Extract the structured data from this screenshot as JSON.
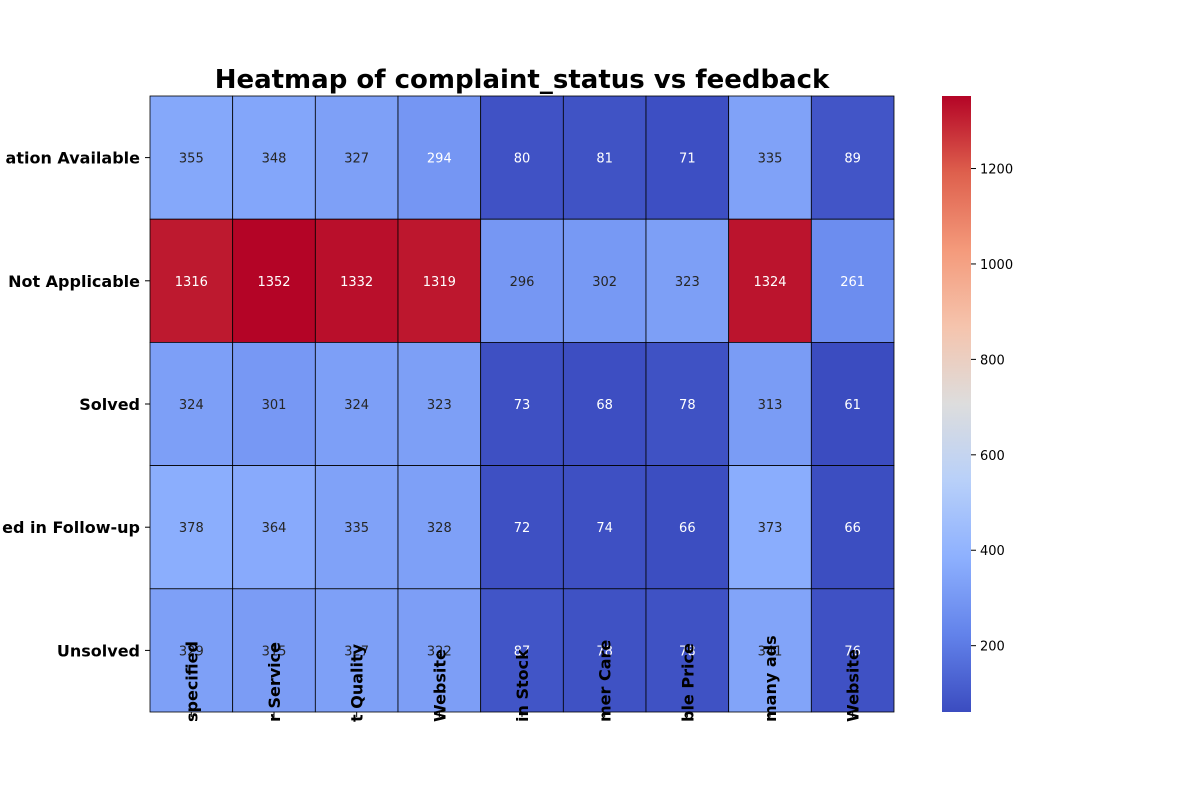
{
  "chart_data": {
    "type": "heatmap",
    "title": "Heatmap of complaint_status vs feedback",
    "xlabel": "",
    "ylabel": "",
    "rows": [
      "ation Available",
      "Not Applicable",
      "Solved",
      "ed in Follow-up",
      "Unsolved"
    ],
    "columns": [
      "specified",
      "r Service",
      "t Quality",
      "Website",
      "in Stock",
      "mer Care",
      "ble Price",
      "many ads",
      "Website"
    ],
    "values": [
      [
        355,
        348,
        327,
        294,
        80,
        81,
        71,
        335,
        89
      ],
      [
        1316,
        1352,
        1332,
        1319,
        296,
        302,
        323,
        1324,
        261
      ],
      [
        324,
        301,
        324,
        323,
        73,
        68,
        78,
        313,
        61
      ],
      [
        378,
        364,
        335,
        328,
        72,
        74,
        66,
        373,
        66
      ],
      [
        329,
        315,
        327,
        322,
        87,
        78,
        78,
        341,
        76
      ]
    ],
    "colormap": "coolwarm",
    "vmin": 61,
    "vmax": 1352,
    "colorbar_ticks": [
      200,
      400,
      600,
      800,
      1000,
      1200
    ],
    "cell_border_color": "#000000"
  }
}
